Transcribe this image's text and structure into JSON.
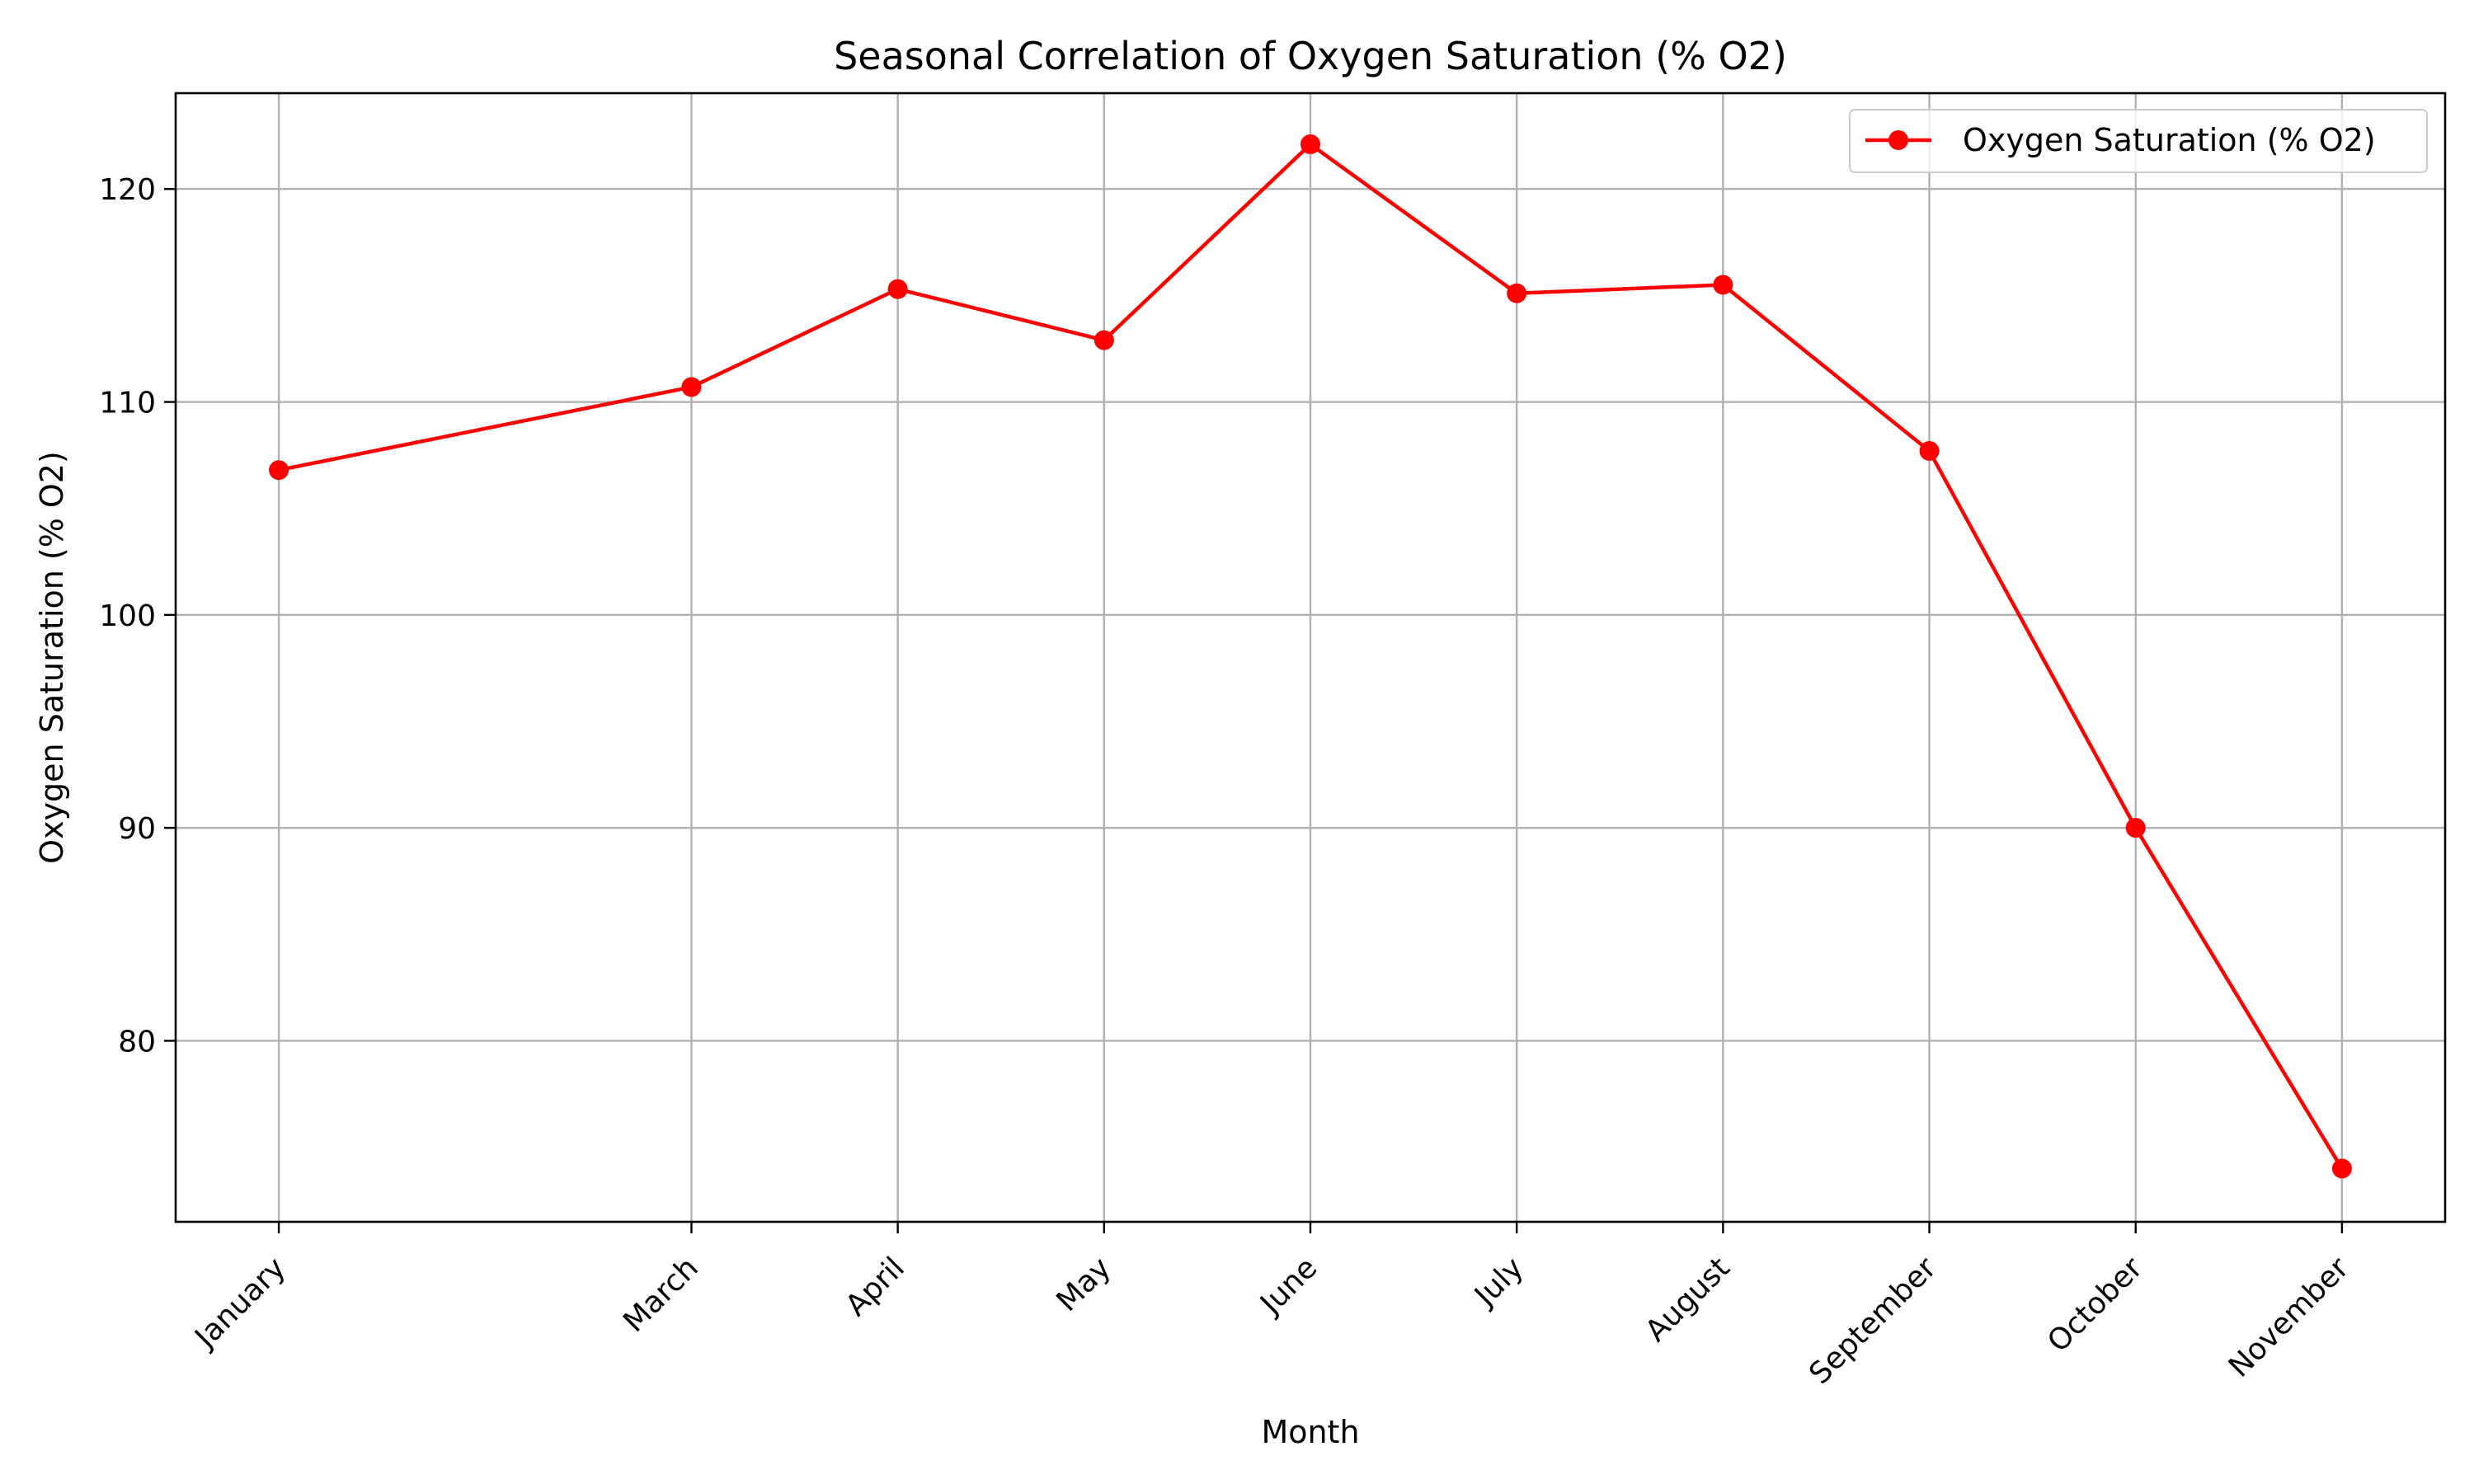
{
  "chart_data": {
    "type": "line",
    "title": "Seasonal Correlation of Oxygen Saturation (% O2)",
    "xlabel": "Month",
    "ylabel": "Oxygen Saturation (% O2)",
    "categories": [
      "January",
      "March",
      "April",
      "May",
      "June",
      "July",
      "August",
      "September",
      "October",
      "November"
    ],
    "x": [
      1,
      3,
      4,
      5,
      6,
      7,
      8,
      9,
      10,
      11
    ],
    "xlim": [
      0.5,
      11.5
    ],
    "series": [
      {
        "name": "Oxygen Saturation (% O2)",
        "color": "#ff0000",
        "marker": "circle",
        "values": [
          106.8,
          110.7,
          115.3,
          112.9,
          122.1,
          115.1,
          115.5,
          107.7,
          90.0,
          74.0
        ]
      }
    ],
    "ylim": [
      71.5,
      124.5
    ],
    "yticks": [
      80,
      90,
      100,
      110,
      120
    ],
    "grid": true,
    "legend_position": "top-right"
  }
}
